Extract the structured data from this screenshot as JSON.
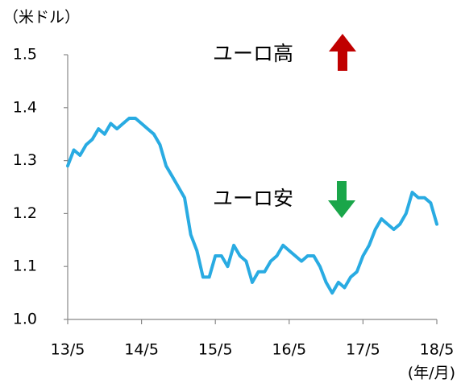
{
  "chart_data": {
    "type": "line",
    "y_label": "（米ドル）",
    "x_label": "(年/月)",
    "annotations": [
      "ユーロ高",
      "ユーロ安"
    ],
    "x": [
      "13/5",
      null,
      null,
      null,
      null,
      null,
      null,
      null,
      null,
      null,
      null,
      null,
      "14/5",
      null,
      null,
      null,
      null,
      null,
      null,
      null,
      null,
      null,
      null,
      null,
      "15/5",
      null,
      null,
      null,
      null,
      null,
      null,
      null,
      null,
      null,
      null,
      null,
      "16/5",
      null,
      null,
      null,
      null,
      null,
      null,
      null,
      null,
      null,
      null,
      null,
      "17/5",
      null,
      null,
      null,
      null,
      null,
      null,
      null,
      null,
      null,
      null,
      null,
      "18/5"
    ],
    "values": [
      1.29,
      1.32,
      1.31,
      1.33,
      1.34,
      1.36,
      1.35,
      1.37,
      1.36,
      1.37,
      1.38,
      1.38,
      1.37,
      1.36,
      1.35,
      1.33,
      1.29,
      1.27,
      1.25,
      1.23,
      1.16,
      1.13,
      1.08,
      1.08,
      1.12,
      1.12,
      1.1,
      1.14,
      1.12,
      1.11,
      1.07,
      1.09,
      1.09,
      1.11,
      1.12,
      1.14,
      1.13,
      1.12,
      1.11,
      1.12,
      1.12,
      1.1,
      1.07,
      1.05,
      1.07,
      1.06,
      1.08,
      1.09,
      1.12,
      1.14,
      1.17,
      1.19,
      1.18,
      1.17,
      1.18,
      1.2,
      1.24,
      1.23,
      1.23,
      1.22,
      1.18
    ],
    "color": "#29abe2",
    "ylim": [
      1.0,
      1.5
    ],
    "yticks": [
      {
        "value": 1.0,
        "label": "1.0"
      },
      1.1,
      1.2,
      1.3,
      1.4,
      1.5
    ],
    "grid": false
  }
}
